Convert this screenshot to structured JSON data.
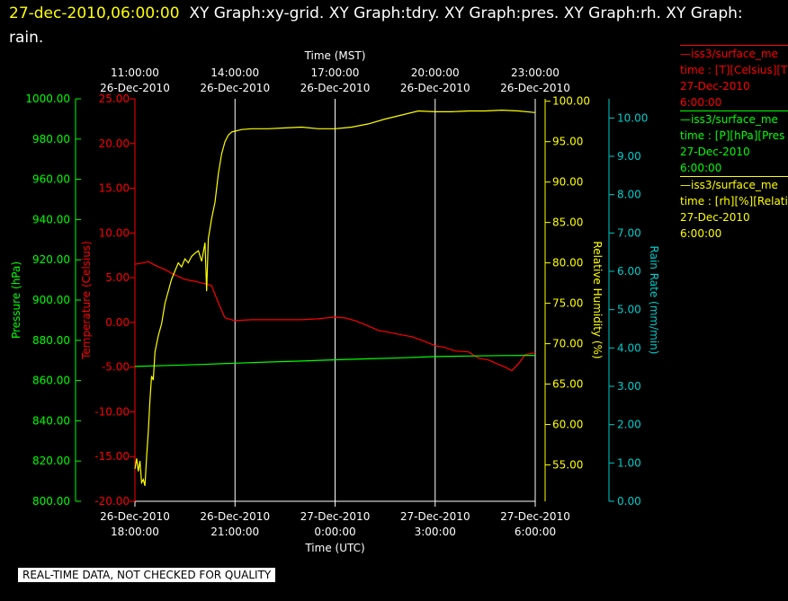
{
  "title": {
    "timestamp": "27-dec-2010,06:00:00",
    "rest": "XY Graph:xy-grid.  XY Graph:tdry.  XY Graph:pres.  XY Graph:rh.  XY Graph: rain."
  },
  "footer": "REAL-TIME DATA, NOT CHECKED FOR QUALITY",
  "legend": [
    {
      "line1": "—iss3/surface_me",
      "line2": "time : [T][Celsius][T",
      "line3": "27-Dec-2010",
      "line4": "6:00:00",
      "color": "#ff0000"
    },
    {
      "line1": "—iss3/surface_me",
      "line2": "time : [P][hPa][Pres",
      "line3": "27-Dec-2010",
      "line4": "6:00:00",
      "color": "#00ff00"
    },
    {
      "line1": "—iss3/surface_me",
      "line2": "time : [rh][%][Relati",
      "line3": "27-Dec-2010",
      "line4": "6:00:00",
      "color": "#ffff00"
    }
  ],
  "chart_data": {
    "type": "line",
    "grid": true,
    "x_top": {
      "label": "Time (MST)",
      "ticks": [
        {
          "t": 0,
          "l1": "11:00:00",
          "l2": "26-Dec-2010"
        },
        {
          "t": 3,
          "l1": "14:00:00",
          "l2": "26-Dec-2010"
        },
        {
          "t": 6,
          "l1": "17:00:00",
          "l2": "26-Dec-2010"
        },
        {
          "t": 9,
          "l1": "20:00:00",
          "l2": "26-Dec-2010"
        },
        {
          "t": 12,
          "l1": "23:00:00",
          "l2": "26-Dec-2010"
        }
      ]
    },
    "x_bottom": {
      "label": "Time (UTC)",
      "range": [
        0,
        12
      ],
      "ticks": [
        {
          "t": 0,
          "l1": "26-Dec-2010",
          "l2": "18:00:00"
        },
        {
          "t": 3,
          "l1": "26-Dec-2010",
          "l2": "21:00:00"
        },
        {
          "t": 6,
          "l1": "27-Dec-2010",
          "l2": "0:00:00"
        },
        {
          "t": 9,
          "l1": "27-Dec-2010",
          "l2": "3:00:00"
        },
        {
          "t": 12,
          "l1": "27-Dec-2010",
          "l2": "6:00:00"
        }
      ]
    },
    "axes": {
      "pressure": {
        "label": "Pressure (hPa)",
        "color": "#00ff00",
        "range": [
          800,
          1000
        ],
        "ticks": [
          "800.00",
          "820.00",
          "840.00",
          "860.00",
          "880.00",
          "900.00",
          "920.00",
          "940.00",
          "960.00",
          "980.00",
          "1000.00"
        ]
      },
      "temperature": {
        "label": "Temperature (Celsius)",
        "color": "#ff0000",
        "range": [
          -20,
          25
        ],
        "ticks": [
          "-20.00",
          "-15.00",
          "-10.00",
          "-5.00",
          "0.00",
          "5.00",
          "10.00",
          "15.00",
          "20.00",
          "25.00"
        ]
      },
      "rh": {
        "label": "Relative Humidity (%)",
        "color": "#ffff00",
        "range": [
          50.5,
          100.3
        ],
        "ticks": [
          "55.00",
          "60.00",
          "65.00",
          "70.00",
          "75.00",
          "80.00",
          "85.00",
          "90.00",
          "95.00",
          "100.00"
        ]
      },
      "rain": {
        "label": "Rain Rate (mm/min)",
        "color": "#00cccc",
        "range": [
          0,
          10.5
        ],
        "ticks": [
          "0.00",
          "1.00",
          "2.00",
          "3.00",
          "4.00",
          "5.00",
          "6.00",
          "7.00",
          "8.00",
          "9.00",
          "10.00"
        ]
      }
    },
    "series": [
      {
        "key": "temperature",
        "color": "#ff0000",
        "x": [
          0,
          0.3,
          0.4,
          0.6,
          0.9,
          1.2,
          1.5,
          1.8,
          2.0,
          2.15,
          2.3,
          2.5,
          2.7,
          3.0,
          3.5,
          4.0,
          4.5,
          5.0,
          5.5,
          6.0,
          6.3,
          6.6,
          7.0,
          7.3,
          7.6,
          8.0,
          8.3,
          8.6,
          9.0,
          9.3,
          9.6,
          10.0,
          10.3,
          10.6,
          10.9,
          11.1,
          11.3,
          11.5,
          11.7,
          12.0
        ],
        "values": [
          6.5,
          6.7,
          6.8,
          6.4,
          5.9,
          5.3,
          4.8,
          4.6,
          4.4,
          4.3,
          4.1,
          2.2,
          0.5,
          0.2,
          0.3,
          0.3,
          0.3,
          0.3,
          0.4,
          0.6,
          0.5,
          0.2,
          -0.4,
          -0.9,
          -1.1,
          -1.4,
          -1.6,
          -2.0,
          -2.6,
          -2.8,
          -3.2,
          -3.3,
          -4.0,
          -4.2,
          -4.7,
          -5.0,
          -5.4,
          -4.6,
          -3.6,
          -3.4
        ]
      },
      {
        "key": "pressure",
        "color": "#00ff00",
        "x": [
          0,
          1,
          2,
          3,
          4,
          5,
          6,
          7,
          8,
          9,
          10,
          11,
          12
        ],
        "values": [
          867.0,
          867.5,
          868.0,
          868.6,
          869.2,
          869.7,
          870.3,
          870.8,
          871.3,
          871.9,
          872.2,
          872.4,
          872.5
        ]
      },
      {
        "key": "rh",
        "color": "#ffff00",
        "x": [
          0,
          0.05,
          0.1,
          0.15,
          0.2,
          0.25,
          0.3,
          0.35,
          0.4,
          0.45,
          0.5,
          0.55,
          0.6,
          0.7,
          0.8,
          0.9,
          1.0,
          1.1,
          1.2,
          1.3,
          1.4,
          1.5,
          1.6,
          1.7,
          1.8,
          1.9,
          2.0,
          2.1,
          2.15,
          2.2,
          2.3,
          2.4,
          2.5,
          2.6,
          2.7,
          2.8,
          2.9,
          3.0,
          3.2,
          3.5,
          4.0,
          4.5,
          5.0,
          5.5,
          6.0,
          6.5,
          7.0,
          7.5,
          8.0,
          8.5,
          9.0,
          9.5,
          10.0,
          10.5,
          11.0,
          11.5,
          12.0
        ],
        "values": [
          54.5,
          55.8,
          54.2,
          55.5,
          52.8,
          53.2,
          52.4,
          56.0,
          59.0,
          63.0,
          66.0,
          65.5,
          69.0,
          71.0,
          72.5,
          75.0,
          76.5,
          78.0,
          79.0,
          80.0,
          79.5,
          80.5,
          80.0,
          80.8,
          81.2,
          81.5,
          80.2,
          82.5,
          76.5,
          83.0,
          85.5,
          87.5,
          91.0,
          93.5,
          95.0,
          95.8,
          96.2,
          96.3,
          96.5,
          96.6,
          96.6,
          96.7,
          96.8,
          96.6,
          96.6,
          96.8,
          97.2,
          97.8,
          98.3,
          98.8,
          98.7,
          98.7,
          98.8,
          98.8,
          98.9,
          98.8,
          98.6
        ]
      }
    ]
  }
}
